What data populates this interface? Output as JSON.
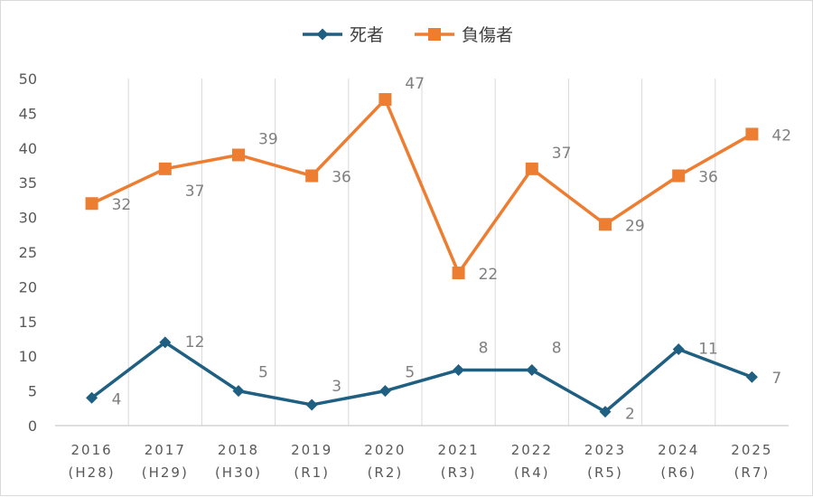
{
  "chart_data": {
    "type": "line",
    "categories": [
      [
        "2016",
        "(H28)"
      ],
      [
        "2017",
        "(H29)"
      ],
      [
        "2018",
        "(H30)"
      ],
      [
        "2019",
        "(R1)"
      ],
      [
        "2020",
        "(R2)"
      ],
      [
        "2021",
        "(R3)"
      ],
      [
        "2022",
        "(R4)"
      ],
      [
        "2023",
        "(R5)"
      ],
      [
        "2024",
        "(R6)"
      ],
      [
        "2025",
        "(R7)"
      ]
    ],
    "yticks": [
      0,
      5,
      10,
      15,
      20,
      25,
      30,
      35,
      40,
      45,
      50
    ],
    "ylim": [
      0,
      50
    ],
    "grid": "vertical",
    "legend": "top-center",
    "series": [
      {
        "name": "死者",
        "color": "#1f5f82",
        "marker": "diamond",
        "values": [
          4,
          12,
          5,
          3,
          5,
          8,
          8,
          2,
          11,
          7
        ]
      },
      {
        "name": "負傷者",
        "color": "#ed7d31",
        "marker": "square",
        "values": [
          32,
          37,
          39,
          36,
          47,
          22,
          37,
          29,
          36,
          42
        ]
      }
    ]
  }
}
